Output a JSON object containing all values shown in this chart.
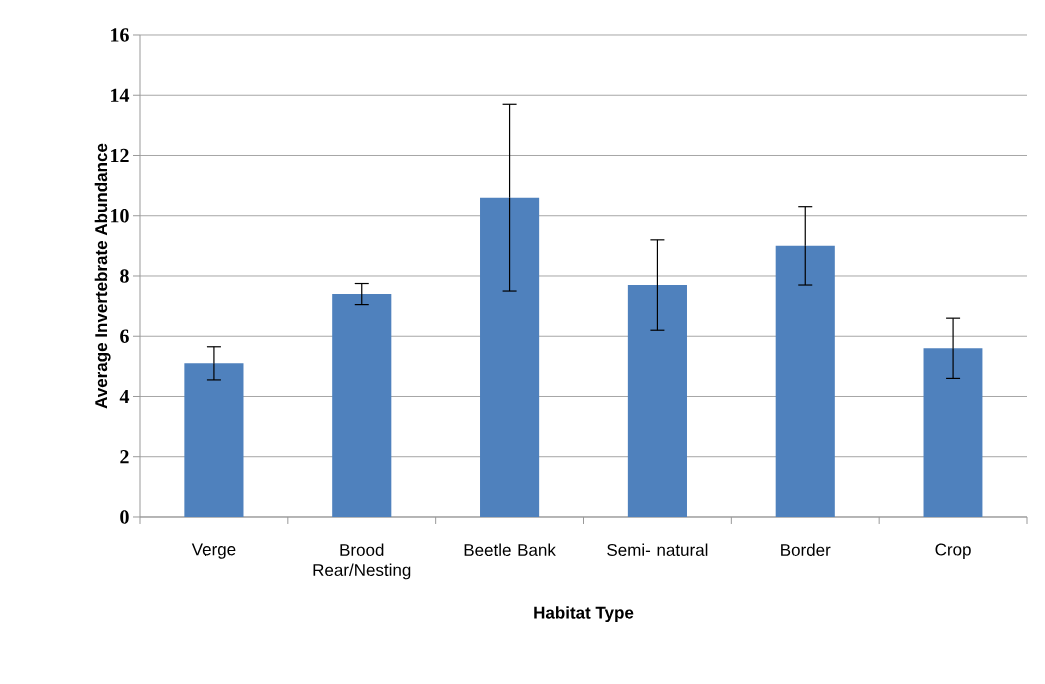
{
  "chart_data": {
    "type": "bar",
    "xlabel": "Habitat Type",
    "ylabel": "Average Invertebrate Abundance",
    "categories": [
      "Verge",
      "Brood Rear/Nesting",
      "Beetle Bank",
      "Semi- natural",
      "Border",
      "Crop"
    ],
    "values": [
      5.1,
      7.4,
      10.6,
      7.7,
      9.0,
      5.6
    ],
    "errors": [
      0.55,
      0.35,
      3.1,
      1.5,
      1.3,
      1.0
    ],
    "color": "#4f81bd",
    "ylim": [
      0,
      16
    ],
    "yticks": [
      0,
      2,
      4,
      6,
      8,
      10,
      12,
      14,
      16
    ],
    "grid": "y"
  }
}
